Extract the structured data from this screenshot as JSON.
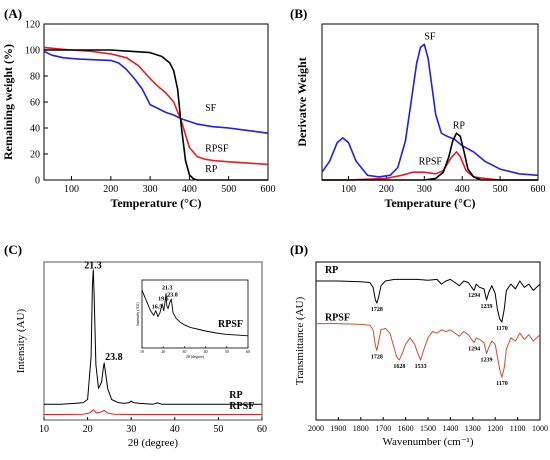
{
  "chart_data": [
    {
      "panel": "(A)",
      "type": "line",
      "xlabel": "Temperature (°C)",
      "ylabel": "Remaining weight (%)",
      "xlim": [
        30,
        600
      ],
      "ylim": [
        0,
        120
      ],
      "xticks": [
        "100",
        "200",
        "300",
        "400",
        "500",
        "600"
      ],
      "yticks": [
        "0",
        "20",
        "40",
        "60",
        "80",
        "100",
        "120"
      ],
      "series": [
        {
          "name": "SF",
          "color": "#2020e0",
          "label_at": [
            440,
            53
          ],
          "x": [
            30,
            50,
            80,
            120,
            160,
            200,
            220,
            240,
            260,
            280,
            300,
            320,
            340,
            360,
            380,
            400,
            420,
            440,
            460,
            480,
            500,
            550,
            600
          ],
          "y": [
            99,
            96,
            94,
            93,
            92.5,
            92,
            90,
            85,
            78,
            70,
            58,
            55,
            52,
            50,
            47,
            45,
            43,
            42,
            41,
            40.5,
            40,
            38,
            36
          ]
        },
        {
          "name": "RPSF",
          "color": "#e02020",
          "label_at": [
            440,
            22
          ],
          "x": [
            30,
            60,
            100,
            150,
            200,
            240,
            270,
            300,
            320,
            340,
            360,
            380,
            400,
            420,
            440,
            460,
            480,
            500,
            550,
            600
          ],
          "y": [
            102,
            101,
            100,
            99,
            97,
            94,
            88,
            78,
            72,
            67,
            60,
            45,
            25,
            18,
            16,
            15,
            14.5,
            14,
            13,
            12
          ]
        },
        {
          "name": "RP",
          "color": "#000000",
          "label_at": [
            440,
            6
          ],
          "x": [
            30,
            100,
            200,
            300,
            330,
            350,
            360,
            370,
            380,
            390,
            400,
            410,
            420,
            440,
            470,
            500,
            600
          ],
          "y": [
            100,
            100,
            100,
            98,
            95,
            90,
            84,
            70,
            40,
            15,
            4,
            1,
            0,
            0,
            0,
            0,
            0
          ]
        }
      ]
    },
    {
      "panel": "(B)",
      "type": "line",
      "xlabel": "Temperature (°C)",
      "ylabel": "Derivatve Weight",
      "xlim": [
        30,
        600
      ],
      "ylim": [
        0,
        1
      ],
      "xticks": [
        "100",
        "200",
        "300",
        "400",
        "500",
        "600"
      ],
      "series": [
        {
          "name": "SF",
          "color": "#2020e0",
          "label_at": [
            300,
            0.9
          ],
          "x": [
            30,
            50,
            70,
            85,
            100,
            120,
            150,
            180,
            210,
            230,
            250,
            265,
            280,
            290,
            300,
            310,
            320,
            330,
            345,
            360,
            380,
            400,
            430,
            460,
            500,
            550,
            600
          ],
          "y": [
            0.05,
            0.12,
            0.24,
            0.27,
            0.24,
            0.12,
            0.03,
            0.02,
            0.03,
            0.08,
            0.25,
            0.5,
            0.75,
            0.85,
            0.87,
            0.78,
            0.6,
            0.42,
            0.3,
            0.28,
            0.26,
            0.22,
            0.18,
            0.12,
            0.07,
            0.04,
            0.03
          ]
        },
        {
          "name": "RPSF",
          "color": "#e02020",
          "label_at": [
            285,
            0.1
          ],
          "x": [
            30,
            100,
            200,
            240,
            270,
            300,
            330,
            350,
            370,
            385,
            395,
            410,
            430,
            460,
            500,
            600
          ],
          "y": [
            0.0,
            0.0,
            0.01,
            0.03,
            0.05,
            0.05,
            0.04,
            0.06,
            0.14,
            0.18,
            0.15,
            0.06,
            0.02,
            0.01,
            0.0,
            0.0
          ]
        },
        {
          "name": "RP",
          "color": "#000000",
          "label_at": [
            375,
            0.33
          ],
          "x": [
            30,
            200,
            300,
            330,
            350,
            365,
            375,
            385,
            395,
            405,
            415,
            430,
            450,
            500,
            600
          ],
          "y": [
            0.0,
            0.0,
            0.0,
            0.01,
            0.05,
            0.15,
            0.25,
            0.3,
            0.28,
            0.18,
            0.07,
            0.02,
            0.0,
            0.0,
            0.0
          ]
        }
      ]
    },
    {
      "panel": "(C)",
      "type": "line",
      "xlabel": "2θ (degree)",
      "ylabel": "Intensity (AU)",
      "xlim": [
        10,
        60
      ],
      "ylim": [
        0,
        100
      ],
      "xticks": [
        "10",
        "20",
        "30",
        "40",
        "50",
        "60"
      ],
      "peak_labels": [
        {
          "text": "21.3",
          "x": 21.3,
          "y": 96
        },
        {
          "text": "23.8",
          "x": 23.8,
          "y": 38
        }
      ],
      "series": [
        {
          "name": "RP",
          "color": "#000000",
          "label_at": [
            52.5,
            14
          ],
          "x": [
            10,
            14,
            17,
            19,
            20,
            20.8,
            21.1,
            21.3,
            21.5,
            21.9,
            22.5,
            23.2,
            23.6,
            23.8,
            24.1,
            24.6,
            25.5,
            27,
            28.5,
            29.5,
            30,
            30.5,
            32,
            35,
            36,
            37,
            40,
            45,
            50,
            55,
            60
          ],
          "y": [
            10,
            10,
            10.5,
            11,
            13,
            40,
            85,
            95,
            80,
            35,
            20,
            24,
            33,
            36,
            30,
            20,
            13,
            11,
            10.5,
            11,
            12,
            11,
            10.5,
            10,
            10.8,
            10,
            10,
            10,
            10,
            10,
            10
          ]
        },
        {
          "name": "RPSF",
          "color": "#e02020",
          "label_at": [
            52.5,
            7
          ],
          "x": [
            10,
            15,
            19,
            20.5,
            21.3,
            22,
            23,
            23.8,
            24.5,
            26,
            30,
            40,
            50,
            60
          ],
          "y": [
            3.5,
            3.5,
            3.7,
            4.5,
            6.5,
            4.5,
            5,
            6,
            4.5,
            3.7,
            3.5,
            3.5,
            3.5,
            3.5
          ]
        }
      ],
      "inset": {
        "ylabel": "Intensity (AU)",
        "xlabel": "2θ (degree)",
        "xlim": [
          10,
          60
        ],
        "ylim": [
          0,
          100
        ],
        "xticks": [
          "10",
          "20",
          "30",
          "40",
          "50",
          "60"
        ],
        "label": "RPSF",
        "peak_labels": [
          {
            "text": "16.5",
            "x": 16.5,
            "y": 58
          },
          {
            "text": "19.5",
            "x": 19.5,
            "y": 70
          },
          {
            "text": "21.3",
            "x": 21.3,
            "y": 86
          },
          {
            "text": "23.8",
            "x": 23.8,
            "y": 76
          }
        ],
        "x": [
          10,
          12,
          14,
          15.5,
          16.5,
          17.5,
          18.5,
          19.5,
          20.3,
          21,
          21.3,
          21.7,
          22.3,
          23,
          23.8,
          24.6,
          26,
          28,
          30,
          33,
          36,
          40,
          45,
          50,
          55,
          60
        ],
        "y": [
          85,
          70,
          55,
          48,
          55,
          46,
          52,
          65,
          55,
          70,
          80,
          62,
          58,
          66,
          72,
          52,
          44,
          38,
          34,
          30,
          28,
          25,
          22,
          20,
          19,
          18
        ]
      }
    },
    {
      "panel": "(D)",
      "type": "line",
      "xlabel": "Wavenumber (cm⁻¹)",
      "ylabel": "Transmittance (AU)",
      "xlim": [
        2000,
        1000
      ],
      "ylim": [
        0,
        100
      ],
      "xticks": [
        "2000",
        "1900",
        "1800",
        "1700",
        "1600",
        "1500",
        "1400",
        "1300",
        "1200",
        "1100",
        "1000"
      ],
      "series": [
        {
          "name": "RP",
          "color": "#000000",
          "label_at": [
            1960,
            93
          ],
          "x": [
            2000,
            1900,
            1800,
            1760,
            1745,
            1735,
            1728,
            1720,
            1710,
            1690,
            1650,
            1600,
            1550,
            1500,
            1460,
            1440,
            1420,
            1400,
            1380,
            1360,
            1340,
            1320,
            1300,
            1294,
            1285,
            1270,
            1250,
            1239,
            1228,
            1215,
            1200,
            1190,
            1180,
            1170,
            1160,
            1150,
            1130,
            1110,
            1090,
            1070,
            1050,
            1030,
            1000
          ],
          "y": [
            88,
            88,
            87.5,
            87,
            84,
            76,
            74,
            78,
            85,
            88,
            89,
            89,
            89,
            88.5,
            89,
            86,
            88,
            89,
            87,
            85,
            88,
            87,
            83,
            82,
            86,
            84,
            83,
            76,
            81,
            85,
            80,
            70,
            64,
            62,
            70,
            82,
            86,
            83,
            88,
            84,
            86,
            82,
            86
          ]
        },
        {
          "name": "RPSF",
          "color": "#c85030",
          "label_at": [
            1960,
            63
          ],
          "x": [
            2000,
            1900,
            1800,
            1760,
            1745,
            1735,
            1728,
            1720,
            1710,
            1690,
            1670,
            1650,
            1640,
            1628,
            1615,
            1600,
            1580,
            1560,
            1545,
            1533,
            1520,
            1500,
            1480,
            1460,
            1440,
            1420,
            1400,
            1380,
            1360,
            1340,
            1320,
            1300,
            1294,
            1285,
            1270,
            1250,
            1239,
            1228,
            1215,
            1200,
            1190,
            1180,
            1170,
            1160,
            1150,
            1130,
            1110,
            1090,
            1070,
            1050,
            1030,
            1000
          ],
          "y": [
            61,
            61,
            60.5,
            60,
            57,
            47,
            44,
            50,
            57,
            58,
            55,
            45,
            40,
            38,
            42,
            48,
            52,
            48,
            42,
            38,
            44,
            52,
            56,
            55,
            57,
            56,
            57,
            55,
            53,
            56,
            54,
            50,
            49,
            52,
            51,
            49,
            42,
            46,
            50,
            48,
            40,
            32,
            27,
            33,
            45,
            52,
            50,
            55,
            51,
            54,
            50,
            54
          ]
        }
      ],
      "peak_labels": [
        {
          "text": "1728",
          "x": 1728,
          "y": 69,
          "series": "RP"
        },
        {
          "text": "1294",
          "x": 1294,
          "y": 78,
          "series": "RP"
        },
        {
          "text": "1239",
          "x": 1239,
          "y": 71,
          "series": "RP"
        },
        {
          "text": "1170",
          "x": 1170,
          "y": 57,
          "series": "RP"
        },
        {
          "text": "1728",
          "x": 1728,
          "y": 39,
          "series": "RPSF"
        },
        {
          "text": "1628",
          "x": 1628,
          "y": 33,
          "series": "RPSF"
        },
        {
          "text": "1533",
          "x": 1533,
          "y": 33,
          "series": "RPSF"
        },
        {
          "text": "1294",
          "x": 1294,
          "y": 44,
          "series": "RPSF"
        },
        {
          "text": "1239",
          "x": 1239,
          "y": 37,
          "series": "RPSF"
        },
        {
          "text": "1170",
          "x": 1170,
          "y": 22,
          "series": "RPSF"
        }
      ]
    }
  ]
}
